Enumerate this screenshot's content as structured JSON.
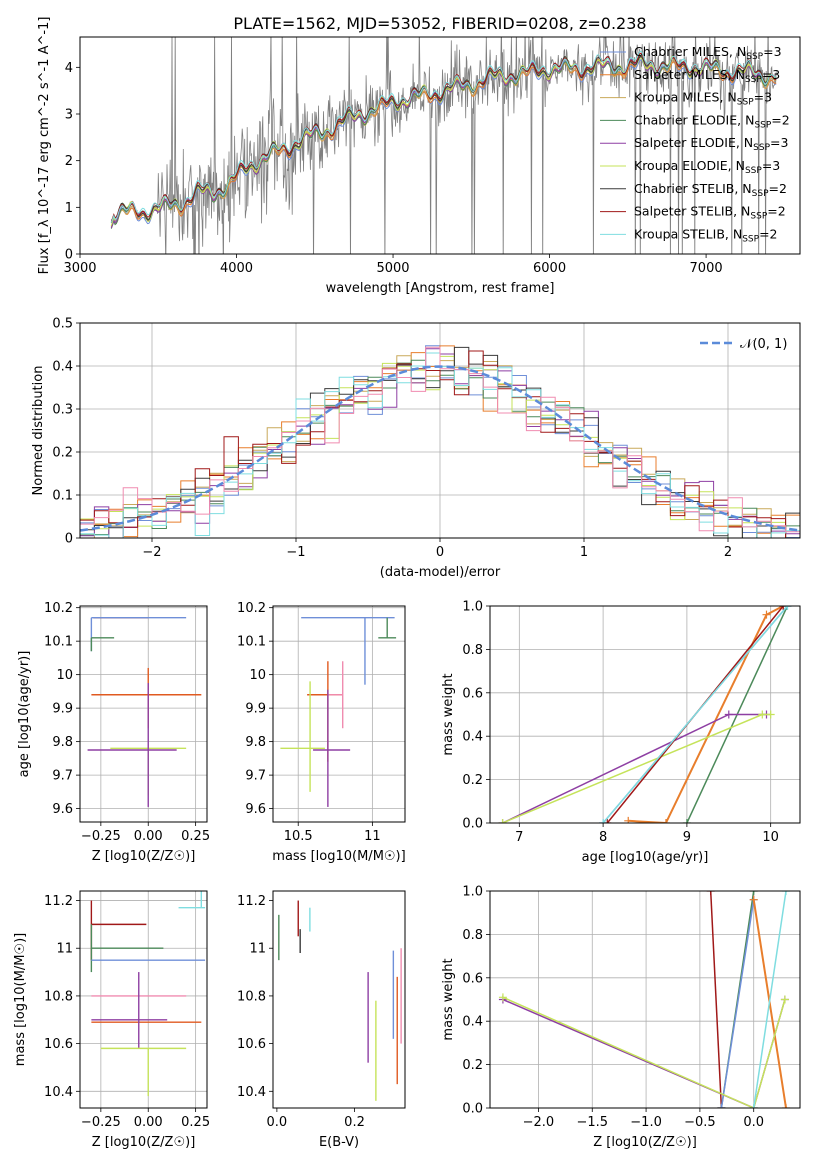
{
  "palette": [
    "#6f8fd8",
    "#e87e2c",
    "#c9a95a",
    "#4c8a5a",
    "#8e3fa3",
    "#c5e35a",
    "#3a3a3a",
    "#a01818",
    "#7fdde0",
    "#f08cb0",
    "#e05a20",
    "#9090ff"
  ],
  "chart_data": [
    {
      "id": "spectrum",
      "type": "line",
      "title": "PLATE=1562, MJD=53052, FIBERID=0208, z=0.238",
      "xlabel": "wavelength [Angstrom, rest frame]",
      "ylabel": "Flux [f_λ 10^-17 erg cm^-2 s^-1 A^-1]",
      "xlim": [
        3000,
        7600
      ],
      "ylim": [
        0,
        4.65
      ],
      "xticks": [
        3000,
        4000,
        5000,
        6000,
        7000
      ],
      "yticks": [
        0,
        1,
        2,
        3,
        4
      ],
      "grid": false,
      "legend_position": "upper-right",
      "data_color": "#808080",
      "continuum": {
        "x": [
          3200,
          3250,
          3400,
          3550,
          3650,
          3750,
          3850,
          3950,
          4050,
          4200,
          4400,
          4600,
          4800,
          5000,
          5200,
          5400,
          5600,
          5800,
          6000,
          6300,
          6600,
          6900,
          7200,
          7450
        ],
        "y": [
          0.8,
          0.9,
          0.9,
          1.0,
          1.1,
          1.3,
          1.3,
          1.5,
          1.8,
          2.1,
          2.4,
          2.7,
          3.0,
          3.25,
          3.4,
          3.55,
          3.75,
          3.85,
          3.95,
          4.0,
          4.05,
          4.0,
          3.9,
          3.8
        ]
      },
      "series": [
        {
          "name": "Chabrier MILES, N_SSP=3",
          "color": "#6f8fd8",
          "lw": 1
        },
        {
          "name": "Salpeter MILES, N_SSP=3",
          "color": "#e87e2c",
          "lw": 1
        },
        {
          "name": "Kroupa MILES, N_SSP=3",
          "color": "#c9a95a",
          "lw": 1
        },
        {
          "name": "Chabrier ELODIE, N_SSP=2",
          "color": "#4c8a5a",
          "lw": 1
        },
        {
          "name": "Salpeter ELODIE, N_SSP=3",
          "color": "#8e3fa3",
          "lw": 1
        },
        {
          "name": "Kroupa ELODIE, N_SSP=3",
          "color": "#c5e35a",
          "lw": 1
        },
        {
          "name": "Chabrier STELIB, N_SSP=2",
          "color": "#3a3a3a",
          "lw": 1
        },
        {
          "name": "Salpeter STELIB, N_SSP=2",
          "color": "#a01818",
          "lw": 1
        },
        {
          "name": "Kroupa STELIB, N_SSP=2",
          "color": "#7fdde0",
          "lw": 1
        }
      ]
    },
    {
      "id": "residuals",
      "type": "line",
      "xlabel": "(data-model)/error",
      "ylabel": "Normed distribution",
      "xlim": [
        -2.5,
        2.5
      ],
      "ylim": [
        0,
        0.5
      ],
      "xticks": [
        -2,
        -1,
        0,
        1,
        2
      ],
      "yticks": [
        0.0,
        0.1,
        0.2,
        0.3,
        0.4,
        0.5
      ],
      "grid": true,
      "legend_position": "upper-right",
      "reference": {
        "name": "𝒩(0, 1)",
        "color": "#5b8bd9",
        "mean": 0,
        "sigma": 1
      },
      "bins": {
        "start": -2.5,
        "width": 0.1,
        "count": 50
      }
    },
    {
      "id": "age-vs-Z",
      "type": "scatter",
      "xlabel": "Z [log10(Z/Z☉)]",
      "ylabel": "age [log10(age/yr)]",
      "xlim": [
        -0.36,
        0.31
      ],
      "ylim": [
        9.56,
        10.205
      ],
      "xticks": [
        -0.25,
        0.0,
        0.25
      ],
      "xticklabels": [
        "−0.25",
        "0.00",
        "0.25"
      ],
      "yticks": [
        9.6,
        9.7,
        9.8,
        9.9,
        10.0,
        10.1,
        10.2
      ],
      "grid": true,
      "points": [
        {
          "x": 0.0,
          "y": 10.17,
          "xerr": [
            0.29,
            0.0
          ],
          "yerr": [
            0.0,
            0.0
          ],
          "color": "#a01818"
        },
        {
          "x": -0.3,
          "y": 10.17,
          "xerr": [
            0.0,
            0.5
          ],
          "yerr": [
            0.1,
            0.0
          ],
          "color": "#6f8fd8"
        },
        {
          "x": -0.3,
          "y": 10.11,
          "xerr": [
            0.0,
            0.12
          ],
          "yerr": [
            0.04,
            0.0
          ],
          "color": "#4c8a5a"
        },
        {
          "x": 0.0,
          "y": 9.94,
          "xerr": [
            0.3,
            0.28
          ],
          "yerr": [
            0.1,
            0.08
          ],
          "color": "#e05a20"
        },
        {
          "x": 0.0,
          "y": 9.78,
          "xerr": [
            0.2,
            0.2
          ],
          "yerr": [
            0.14,
            0.0
          ],
          "color": "#c5e35a"
        },
        {
          "x": 0.0,
          "y": 9.775,
          "xerr": [
            0.32,
            0.15
          ],
          "yerr": [
            0.17,
            0.2
          ],
          "color": "#8e3fa3"
        }
      ]
    },
    {
      "id": "age-vs-mass",
      "type": "scatter",
      "xlabel": "mass [log10(M/M☉)]",
      "ylabel": "",
      "xlim": [
        10.33,
        11.22
      ],
      "ylim": [
        9.56,
        10.205
      ],
      "xticks": [
        10.5,
        11.0
      ],
      "yticks": [
        9.6,
        9.7,
        9.8,
        9.9,
        10.0,
        10.1,
        10.2
      ],
      "grid": true,
      "points": [
        {
          "x": 10.95,
          "y": 10.17,
          "xerr": [
            0.43,
            0.2
          ],
          "yerr": [
            0.2,
            0.0
          ],
          "color": "#6f8fd8"
        },
        {
          "x": 11.1,
          "y": 10.11,
          "xerr": [
            0.06,
            0.06
          ],
          "yerr": [
            0.0,
            0.06
          ],
          "color": "#4c8a5a"
        },
        {
          "x": 10.7,
          "y": 9.94,
          "xerr": [
            0.14,
            0.1
          ],
          "yerr": [
            0.2,
            0.1
          ],
          "color": "#e05a20"
        },
        {
          "x": 10.8,
          "y": 9.94,
          "xerr": [
            0.1,
            0.0
          ],
          "yerr": [
            0.1,
            0.1
          ],
          "color": "#f08cb0"
        },
        {
          "x": 10.58,
          "y": 9.78,
          "xerr": [
            0.2,
            0.1
          ],
          "yerr": [
            0.13,
            0.2
          ],
          "color": "#c5e35a"
        },
        {
          "x": 10.7,
          "y": 9.775,
          "xerr": [
            0.1,
            0.15
          ],
          "yerr": [
            0.17,
            0.18
          ],
          "color": "#8e3fa3"
        }
      ]
    },
    {
      "id": "mass-weight-vs-age",
      "type": "line",
      "xlabel": "age [log10(age/yr)]",
      "ylabel": "mass weight",
      "xlim": [
        6.65,
        10.35
      ],
      "ylim": [
        0,
        1.0
      ],
      "xticks": [
        7,
        8,
        9,
        10
      ],
      "yticks": [
        0.0,
        0.2,
        0.4,
        0.6,
        0.8,
        1.0
      ],
      "grid": true,
      "series": [
        {
          "color": "#e87e2c",
          "lw": 2,
          "x": [
            8.3,
            8.75,
            9.95,
            10.15
          ],
          "y": [
            0.01,
            0.0,
            0.96,
            1.0
          ]
        },
        {
          "color": "#4c8a5a",
          "lw": 1.5,
          "x": [
            9.0,
            10.2
          ],
          "y": [
            0.0,
            1.0
          ]
        },
        {
          "color": "#6f8fd8",
          "lw": 1.5,
          "x": [
            8.0,
            10.2
          ],
          "y": [
            0.0,
            1.0
          ]
        },
        {
          "color": "#8e3fa3",
          "lw": 1.5,
          "x": [
            6.8,
            9.5,
            9.95
          ],
          "y": [
            0.0,
            0.5,
            0.5
          ]
        },
        {
          "color": "#c5e35a",
          "lw": 1.5,
          "x": [
            6.8,
            9.9,
            10.0
          ],
          "y": [
            0.0,
            0.5,
            0.5
          ]
        },
        {
          "color": "#a01818",
          "lw": 1.5,
          "x": [
            8.05,
            10.15
          ],
          "y": [
            0.0,
            1.0
          ]
        },
        {
          "color": "#7fdde0",
          "lw": 1.5,
          "x": [
            8.0,
            10.2
          ],
          "y": [
            0.0,
            1.0
          ]
        }
      ]
    },
    {
      "id": "mass-vs-Z",
      "type": "scatter",
      "xlabel": "Z [log10(Z/Z☉)]",
      "ylabel": "mass [log10(M/M☉)]",
      "xlim": [
        -0.36,
        0.31
      ],
      "ylim": [
        10.33,
        11.24
      ],
      "xticks": [
        -0.25,
        0.0,
        0.25
      ],
      "xticklabels": [
        "−0.25",
        "0.00",
        "0.25"
      ],
      "yticks": [
        10.4,
        10.6,
        10.8,
        11.0,
        11.2
      ],
      "grid": true,
      "points": [
        {
          "x": -0.3,
          "y": 11.1,
          "xerr": [
            0.0,
            0.29
          ],
          "yerr": [
            0.15,
            0.1
          ],
          "color": "#a01818"
        },
        {
          "x": -0.3,
          "y": 11.0,
          "xerr": [
            0.0,
            0.38
          ],
          "yerr": [
            0.1,
            0.1
          ],
          "color": "#4c8a5a"
        },
        {
          "x": 0.0,
          "y": 10.95,
          "xerr": [
            0.3,
            0.3
          ],
          "yerr": [
            0.0,
            0.0
          ],
          "color": "#6f8fd8"
        },
        {
          "x": 0.28,
          "y": 11.17,
          "xerr": [
            0.12,
            0.02
          ],
          "yerr": [
            0.0,
            0.07
          ],
          "color": "#7fdde0"
        },
        {
          "x": 0.0,
          "y": 10.8,
          "xerr": [
            0.3,
            0.2
          ],
          "yerr": [
            0.0,
            0.0
          ],
          "color": "#f08cb0"
        },
        {
          "x": 0.0,
          "y": 10.69,
          "xerr": [
            0.3,
            0.28
          ],
          "yerr": [
            0.0,
            0.0
          ],
          "color": "#e05a20"
        },
        {
          "x": -0.05,
          "y": 10.7,
          "xerr": [
            0.25,
            0.15
          ],
          "yerr": [
            0.12,
            0.2
          ],
          "color": "#8e3fa3"
        },
        {
          "x": 0.0,
          "y": 10.58,
          "xerr": [
            0.25,
            0.2
          ],
          "yerr": [
            0.2,
            0.0
          ],
          "color": "#c5e35a"
        }
      ]
    },
    {
      "id": "mass-vs-ebv",
      "type": "scatter",
      "xlabel": "E(B-V)",
      "ylabel": "",
      "xlim": [
        -0.01,
        0.33
      ],
      "ylim": [
        10.33,
        11.24
      ],
      "xticks": [
        0.0,
        0.2
      ],
      "xticklabels": [
        "0.0",
        "0.2"
      ],
      "yticks": [
        10.4,
        10.6,
        10.8,
        11.0,
        11.2
      ],
      "grid": false,
      "points": [
        {
          "x": 0.005,
          "y": 11.05,
          "xerr": [
            0,
            0
          ],
          "yerr": [
            0.1,
            0.09
          ],
          "color": "#4c8a5a"
        },
        {
          "x": 0.055,
          "y": 11.1,
          "xerr": [
            0,
            0
          ],
          "yerr": [
            0.05,
            0.1
          ],
          "color": "#a01818"
        },
        {
          "x": 0.06,
          "y": 11.03,
          "xerr": [
            0,
            0
          ],
          "yerr": [
            0.05,
            0.05
          ],
          "color": "#3a3a3a"
        },
        {
          "x": 0.085,
          "y": 11.12,
          "xerr": [
            0,
            0
          ],
          "yerr": [
            0.05,
            0.05
          ],
          "color": "#7fdde0"
        },
        {
          "x": 0.235,
          "y": 10.71,
          "xerr": [
            0,
            0
          ],
          "yerr": [
            0.19,
            0.19
          ],
          "color": "#8e3fa3"
        },
        {
          "x": 0.255,
          "y": 10.57,
          "xerr": [
            0,
            0
          ],
          "yerr": [
            0.21,
            0.21
          ],
          "color": "#c5e35a"
        },
        {
          "x": 0.3,
          "y": 10.81,
          "xerr": [
            0,
            0
          ],
          "yerr": [
            0.19,
            0.18
          ],
          "color": "#6f8fd8"
        },
        {
          "x": 0.31,
          "y": 10.66,
          "xerr": [
            0,
            0
          ],
          "yerr": [
            0.23,
            0.22
          ],
          "color": "#e05a20"
        },
        {
          "x": 0.32,
          "y": 10.8,
          "xerr": [
            0,
            0
          ],
          "yerr": [
            0.2,
            0.2
          ],
          "color": "#f08cb0"
        }
      ]
    },
    {
      "id": "mass-weight-vs-Z",
      "type": "line",
      "xlabel": "Z [log10(Z/Z☉)]",
      "ylabel": "mass weight",
      "xlim": [
        -2.45,
        0.43
      ],
      "ylim": [
        0,
        1.0
      ],
      "xticks": [
        -2.0,
        -1.5,
        -1.0,
        -0.5,
        0.0
      ],
      "xticklabels": [
        "−2.0",
        "−1.5",
        "−1.0",
        "−0.5",
        "0.0"
      ],
      "yticks": [
        0.0,
        0.2,
        0.4,
        0.6,
        0.8,
        1.0
      ],
      "grid": true,
      "series": [
        {
          "color": "#a01818",
          "lw": 1.5,
          "x": [
            -0.4,
            -0.3
          ],
          "y": [
            1.0,
            0.0
          ]
        },
        {
          "color": "#4c8a5a",
          "lw": 1.5,
          "x": [
            -0.3,
            0.0
          ],
          "y": [
            0.0,
            1.0
          ]
        },
        {
          "color": "#6f8fd8",
          "lw": 1.5,
          "x": [
            -0.3,
            0.0
          ],
          "y": [
            0.0,
            0.96
          ]
        },
        {
          "color": "#e87e2c",
          "lw": 2,
          "x": [
            0.0,
            0.3
          ],
          "y": [
            0.96,
            0.0
          ]
        },
        {
          "color": "#8e3fa3",
          "lw": 1.5,
          "x": [
            -2.33,
            0.0,
            0.29
          ],
          "y": [
            0.5,
            0.0,
            0.5
          ]
        },
        {
          "color": "#c5e35a",
          "lw": 1.5,
          "x": [
            -2.33,
            0.0,
            0.29
          ],
          "y": [
            0.51,
            0.0,
            0.5
          ]
        },
        {
          "color": "#7fdde0",
          "lw": 1.5,
          "x": [
            0.0,
            0.3
          ],
          "y": [
            0.0,
            1.0
          ]
        }
      ]
    }
  ]
}
